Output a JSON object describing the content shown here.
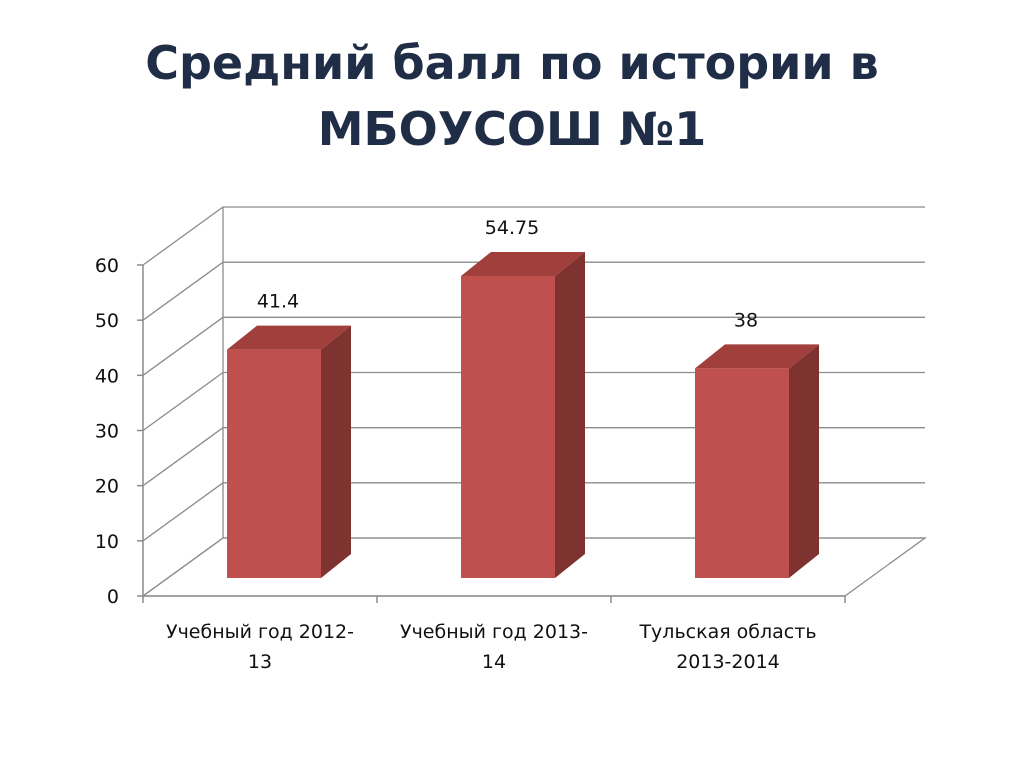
{
  "slide": {
    "title_line1": "Средний балл по истории в",
    "title_line2": "МБОУСОШ №1"
  },
  "colors": {
    "title": "#1f2d46",
    "bar_front": "#c0504d",
    "bar_side": "#7f3330",
    "bar_top": "#a03f3c",
    "grid": "#8c8c8c"
  },
  "chart_data": {
    "type": "bar",
    "style": "3d",
    "title": "Средний балл по истории в МБОУСОШ №1",
    "categories": [
      [
        "Учебный год 2012-",
        "13"
      ],
      [
        "Учебный год 2013-",
        "14"
      ],
      [
        "Тульская область",
        "2013-2014"
      ]
    ],
    "values": [
      41.4,
      54.75,
      38
    ],
    "value_labels": [
      "41.4",
      "54.75",
      "38"
    ],
    "yticks": [
      "0",
      "10",
      "20",
      "30",
      "40",
      "50",
      "60"
    ],
    "ylim": [
      0,
      60
    ],
    "grid": true,
    "legend": "none"
  }
}
